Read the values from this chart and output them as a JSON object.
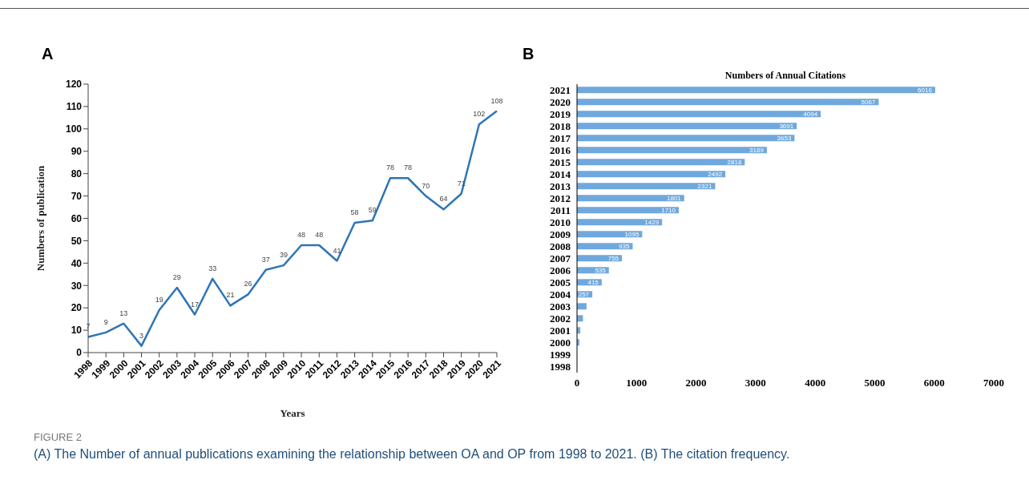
{
  "chart_data": [
    {
      "type": "line",
      "title": "A",
      "xlabel": "Years",
      "ylabel": "Numbers of publication",
      "categories": [
        "1998",
        "1999",
        "2000",
        "2001",
        "2002",
        "2003",
        "2004",
        "2005",
        "2006",
        "2007",
        "2008",
        "2009",
        "2010",
        "2011",
        "2012",
        "2013",
        "2014",
        "2015",
        "2016",
        "2017",
        "2018",
        "2019",
        "2020",
        "2021"
      ],
      "series": [
        {
          "color": "#2e75b6",
          "values": [
            7,
            9,
            13,
            3,
            19,
            29,
            17,
            33,
            21,
            26,
            37,
            39,
            48,
            48,
            41,
            58,
            59,
            78,
            78,
            70,
            64,
            71,
            102,
            108
          ]
        }
      ],
      "ylim": [
        0,
        120
      ],
      "yticks": [
        0,
        10,
        20,
        30,
        40,
        50,
        60,
        70,
        80,
        90,
        100,
        110,
        120
      ],
      "grid": false,
      "legend": false,
      "marker": "none",
      "line_style": "solid",
      "data_labels": true,
      "annotations": [
        "FIGURE 2",
        "(A) The Number of annual publications examining the relationship between OA and OP from 1998 to 2021. (B) The citation frequency."
      ]
    },
    {
      "type": "bar",
      "orientation": "horizontal",
      "title": "Numbers of Annual Citations",
      "categories": [
        "2021",
        "2020",
        "2019",
        "2018",
        "2017",
        "2016",
        "2015",
        "2014",
        "2013",
        "2012",
        "2011",
        "2010",
        "2009",
        "2008",
        "2007",
        "2006",
        "2005",
        "2004",
        "2003",
        "2002",
        "2001",
        "2000",
        "1999",
        "1998"
      ],
      "values": [
        6016,
        5067,
        4094,
        3691,
        3653,
        3189,
        2818,
        2492,
        2321,
        1801,
        1710,
        1429,
        1095,
        935,
        755,
        535,
        415,
        257,
        160,
        100,
        55,
        40,
        0,
        0
      ],
      "value_labels": [
        "6016",
        "5067",
        "4094",
        "3691",
        "3653",
        "3189",
        "2818",
        "2492",
        "2321",
        "1801",
        "1710",
        "1429",
        "1095",
        "935",
        "755",
        "535",
        "415",
        "257",
        null,
        null,
        null,
        null,
        null,
        null
      ],
      "color": "#6fa8dc",
      "xlim": [
        0,
        7000
      ],
      "xticks": [
        0,
        1000,
        2000,
        3000,
        4000,
        5000,
        6000,
        7000
      ],
      "grid": false,
      "legend": false,
      "annotations": [
        "B"
      ]
    }
  ]
}
